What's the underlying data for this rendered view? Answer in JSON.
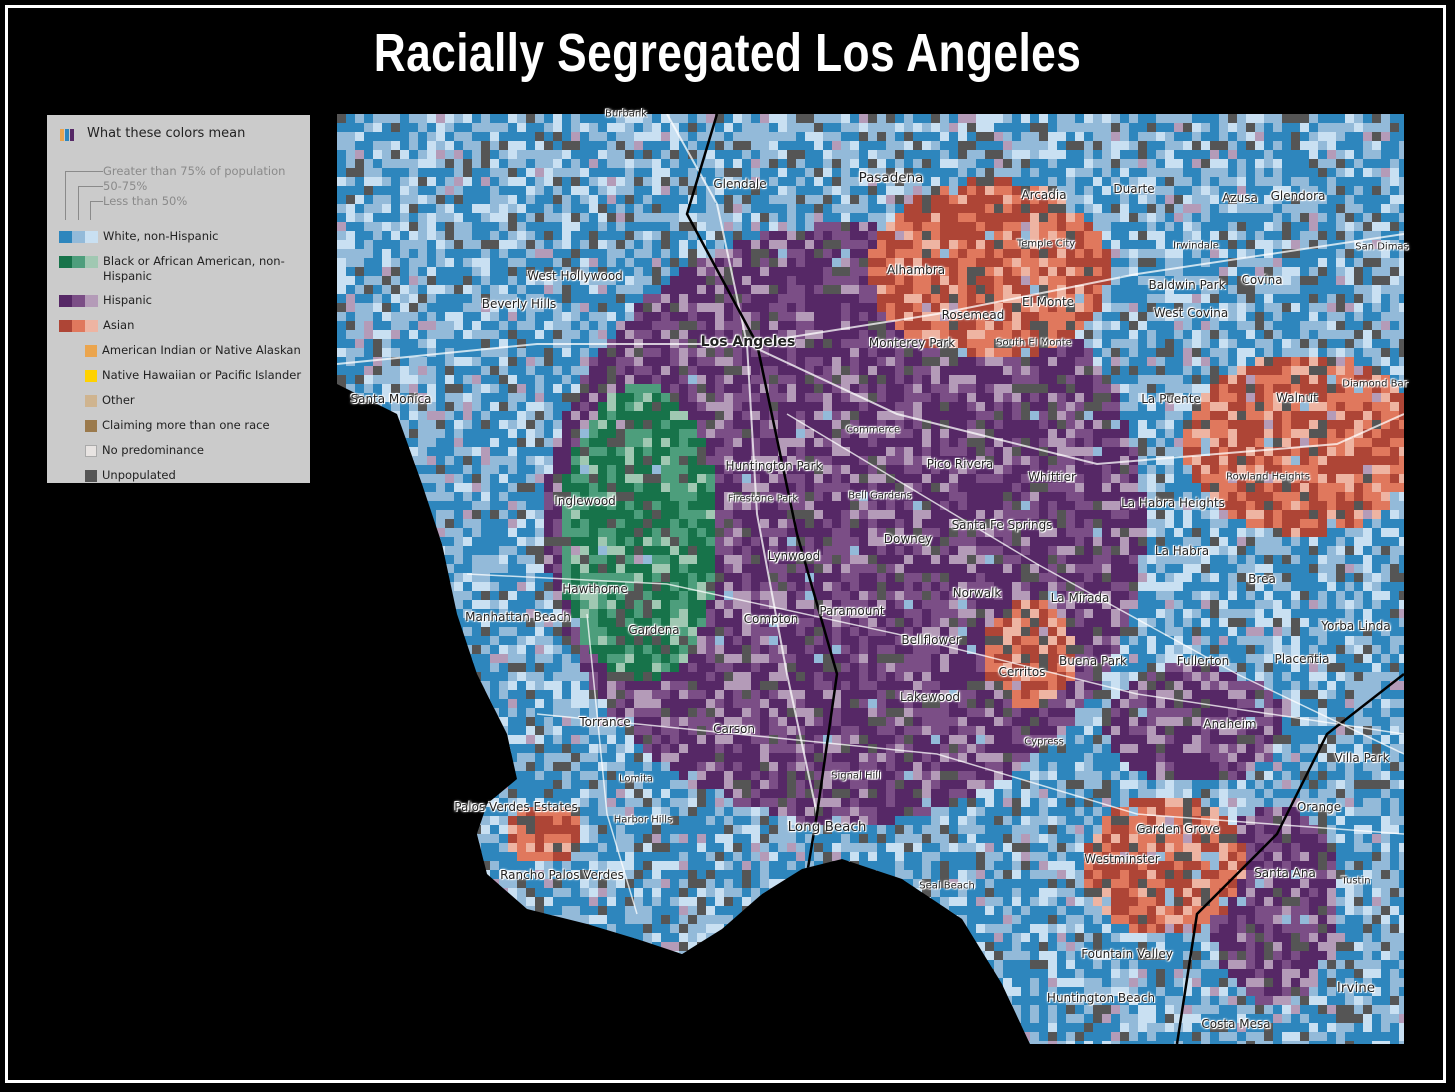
{
  "title": "Racially Segregated Los Angeles",
  "legend": {
    "title": "What these colors mean",
    "tiers": [
      "Greater than 75% of population",
      "50-75%",
      "Less than 50%"
    ],
    "groups": [
      {
        "label": "White, non-Hispanic",
        "colors": [
          "#2e86bd",
          "#93bad9",
          "#c9e0f2"
        ]
      },
      {
        "label": "Black or African American, non-Hispanic",
        "colors": [
          "#17734a",
          "#4d9e7c",
          "#a0c8b2"
        ]
      },
      {
        "label": "Hispanic",
        "colors": [
          "#562866",
          "#7b4e86",
          "#b49bb8"
        ]
      },
      {
        "label": "Asian",
        "colors": [
          "#ae4536",
          "#e0785d",
          "#eeb4a2"
        ]
      }
    ],
    "singles": [
      {
        "label": "American Indian or Native Alaskan",
        "color": "#eba54e"
      },
      {
        "label": "Native Hawaiian or Pacific Islander",
        "color": "#ffd200"
      },
      {
        "label": "Other",
        "color": "#cfb48f"
      },
      {
        "label": "Claiming more than one race",
        "color": "#9b7a4c"
      },
      {
        "label": "No predominance",
        "color": "#e8e4e2"
      },
      {
        "label": "Unpopulated",
        "color": "#555555"
      }
    ]
  },
  "places": [
    "Burbank",
    "Glendale",
    "Pasadena",
    "Arcadia",
    "Duarte",
    "Azusa",
    "Glendora",
    "Temple City",
    "Irwindale",
    "San Dimas",
    "West Hollywood",
    "Alhambra",
    "Baldwin Park",
    "Covina",
    "Beverly Hills",
    "El Monte",
    "Rosemead",
    "West Covina",
    "Los Angeles",
    "Monterey Park",
    "South El Monte",
    "Diamond Bar",
    "Santa Monica",
    "La Puente",
    "Walnut",
    "Commerce",
    "Pico Rivera",
    "Huntington Park",
    "Whittier",
    "Rowland Heights",
    "Firestone Park",
    "Bell Gardens",
    "Inglewood",
    "La Habra Heights",
    "Santa Fe Springs",
    "Downey",
    "Lynwood",
    "La Habra",
    "Brea",
    "Hawthorne",
    "Norwalk",
    "La Mirada",
    "Paramount",
    "Manhattan Beach",
    "Compton",
    "Gardena",
    "Bellflower",
    "Yorba Linda",
    "Buena Park",
    "Fullerton",
    "Placentia",
    "Cerritos",
    "Lakewood",
    "Torrance",
    "Carson",
    "Anaheim",
    "Cypress",
    "Villa Park",
    "Lomita",
    "Signal Hill",
    "Palos Verdes Estates",
    "Orange",
    "Harbor Hills",
    "Long Beach",
    "Garden Grove",
    "Westminster",
    "Santa Ana",
    "Rancho Palos Verdes",
    "Tustin",
    "Seal Beach",
    "Fountain Valley",
    "Huntington Beach",
    "Irvine",
    "Costa Mesa"
  ]
}
